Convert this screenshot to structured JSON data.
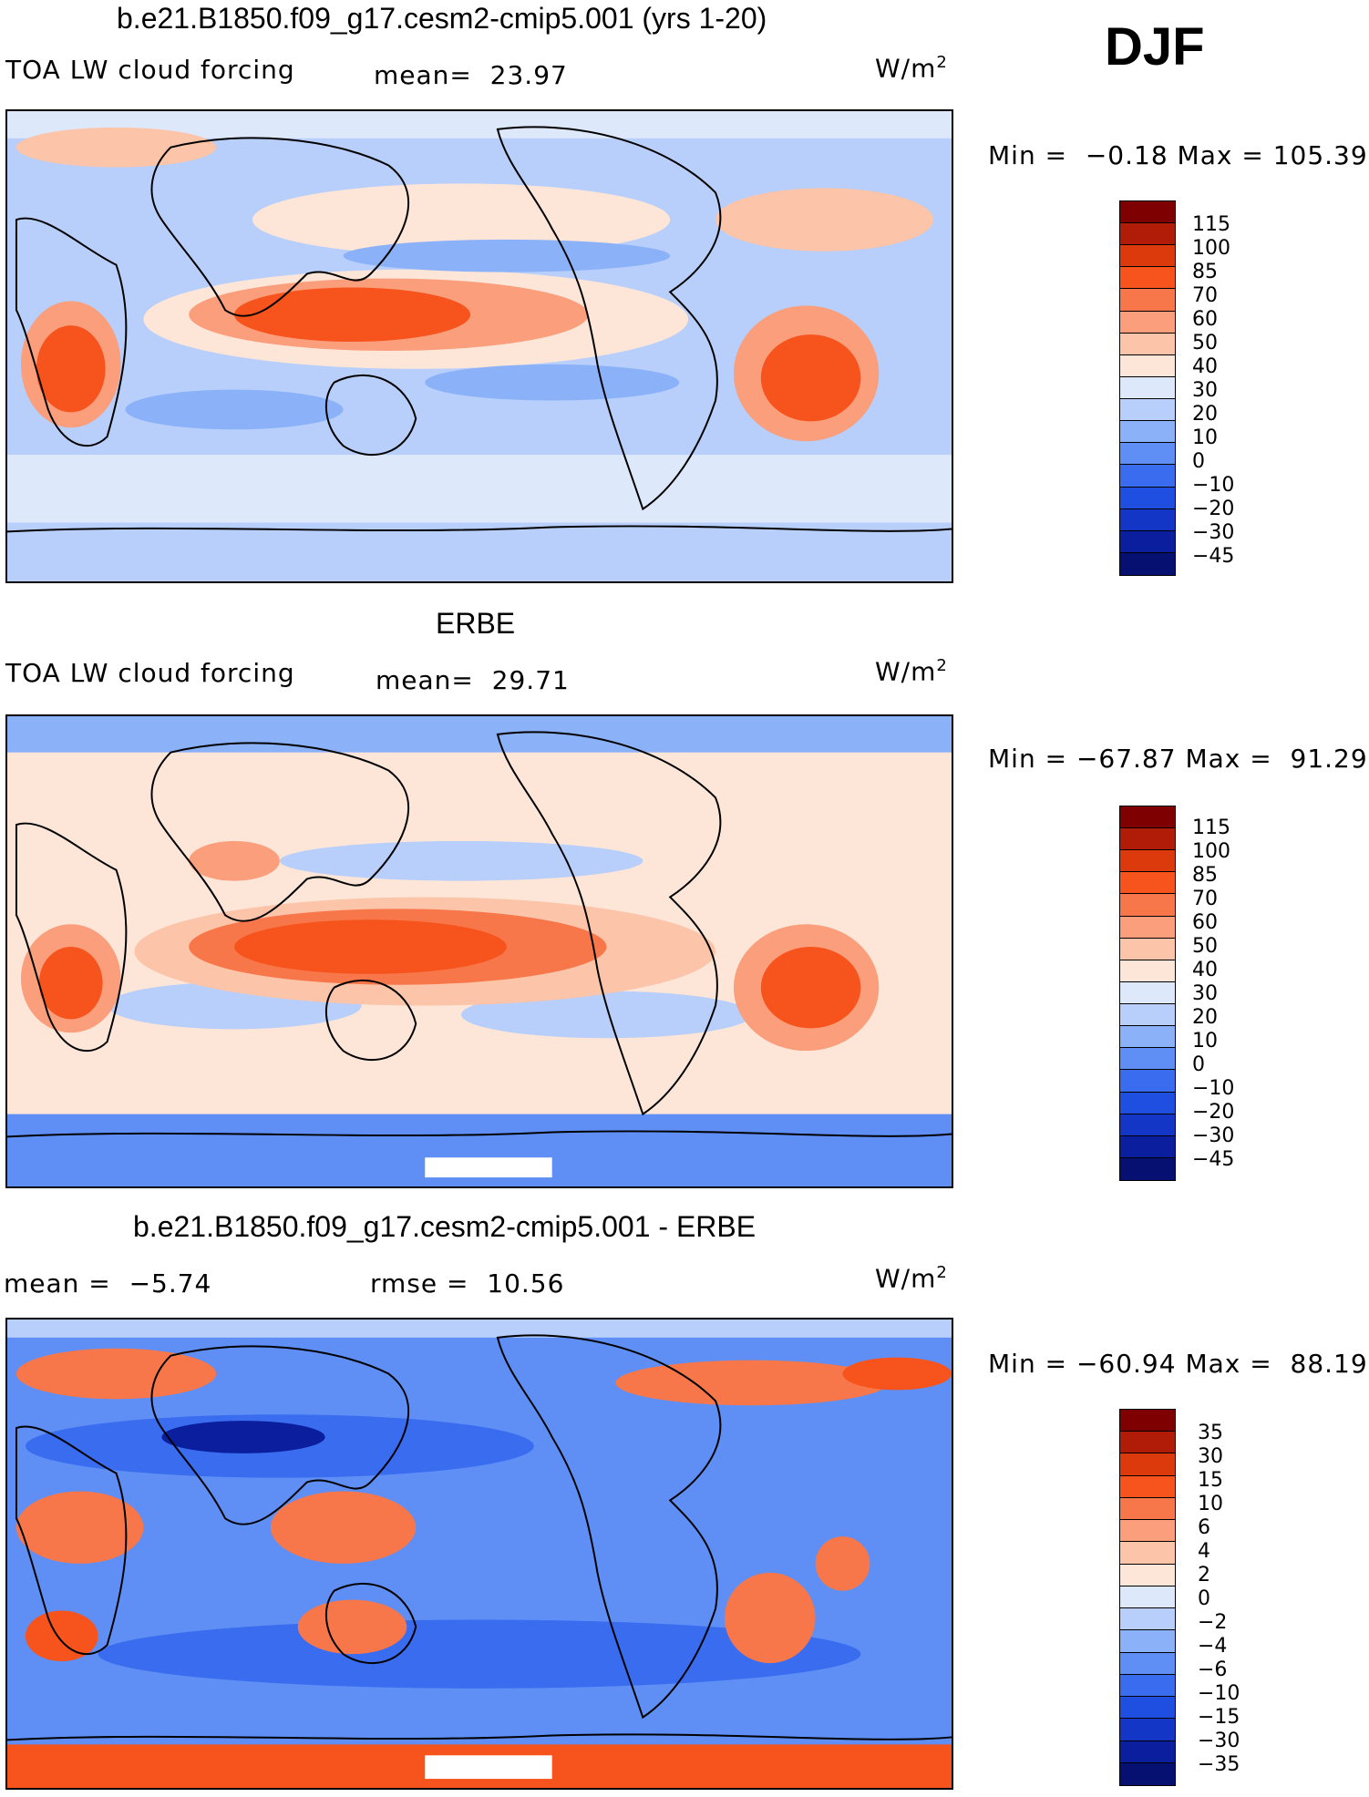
{
  "season": "DJF",
  "units_label": "W/m",
  "units_sup": "2",
  "panels": [
    {
      "title": "b.e21.B1850.f09_g17.cesm2-cmip5.001 (yrs 1-20)",
      "left_label": "TOA LW cloud forcing",
      "mid_label": "mean=  23.97",
      "minmax": "Min =  −0.18 Max = 105.39",
      "colorbar_ticks": [
        "115",
        "100",
        "85",
        "70",
        "60",
        "50",
        "40",
        "30",
        "20",
        "10",
        "0",
        "−10",
        "−20",
        "−30",
        "−45"
      ]
    },
    {
      "title": "ERBE",
      "left_label": "TOA LW cloud forcing",
      "mid_label": "mean=  29.71",
      "minmax": "Min = −67.87 Max =  91.29",
      "colorbar_ticks": [
        "115",
        "100",
        "85",
        "70",
        "60",
        "50",
        "40",
        "30",
        "20",
        "10",
        "0",
        "−10",
        "−20",
        "−30",
        "−45"
      ]
    },
    {
      "title": "b.e21.B1850.f09_g17.cesm2-cmip5.001 - ERBE",
      "left_label": "mean =  −5.74",
      "mid_label": "rmse =  10.56",
      "minmax": "Min = −60.94 Max =  88.19",
      "colorbar_ticks": [
        "35",
        "30",
        "15",
        "10",
        "6",
        "4",
        "2",
        "0",
        "−2",
        "−4",
        "−6",
        "−10",
        "−15",
        "−30",
        "−35"
      ]
    }
  ],
  "chart_data": [
    {
      "type": "heatmap",
      "title": "b.e21.B1850.f09_g17.cesm2-cmip5.001 (yrs 1-20)",
      "variable": "TOA LW cloud forcing",
      "units": "W/m2",
      "mean": 23.97,
      "min": -0.18,
      "max": 105.39,
      "contour_levels": [
        -45,
        -30,
        -20,
        -10,
        0,
        10,
        20,
        30,
        40,
        50,
        60,
        70,
        85,
        100,
        115
      ]
    },
    {
      "type": "heatmap",
      "title": "ERBE",
      "variable": "TOA LW cloud forcing",
      "units": "W/m2",
      "mean": 29.71,
      "min": -67.87,
      "max": 91.29,
      "contour_levels": [
        -45,
        -30,
        -20,
        -10,
        0,
        10,
        20,
        30,
        40,
        50,
        60,
        70,
        85,
        100,
        115
      ]
    },
    {
      "type": "heatmap",
      "title": "b.e21.B1850.f09_g17.cesm2-cmip5.001 - ERBE",
      "units": "W/m2",
      "mean": -5.74,
      "rmse": 10.56,
      "min": -60.94,
      "max": 88.19,
      "contour_levels": [
        -35,
        -30,
        -15,
        -10,
        -6,
        -4,
        -2,
        0,
        2,
        4,
        6,
        10,
        15,
        30,
        35
      ]
    }
  ],
  "colors": {
    "abs_scale": [
      "#7f0000",
      "#b01c08",
      "#dc3a0c",
      "#f7531c",
      "#f7774a",
      "#fa9e7c",
      "#fcc4a9",
      "#fde6d8",
      "#dde9fb",
      "#b7cffa",
      "#8bb1f9",
      "#5f8ff4",
      "#3a6cf0",
      "#1f4fe0",
      "#1436c6",
      "#0b1f9e",
      "#051070"
    ],
    "diff_scale": [
      "#7f0000",
      "#b01c08",
      "#dc3a0c",
      "#f7531c",
      "#f7774a",
      "#fa9e7c",
      "#fcc4a9",
      "#fde6d8",
      "#dde9fb",
      "#b7cffa",
      "#8bb1f9",
      "#5f8ff4",
      "#3a6cf0",
      "#1f4fe0",
      "#1436c6",
      "#0b1f9e",
      "#051070"
    ]
  }
}
